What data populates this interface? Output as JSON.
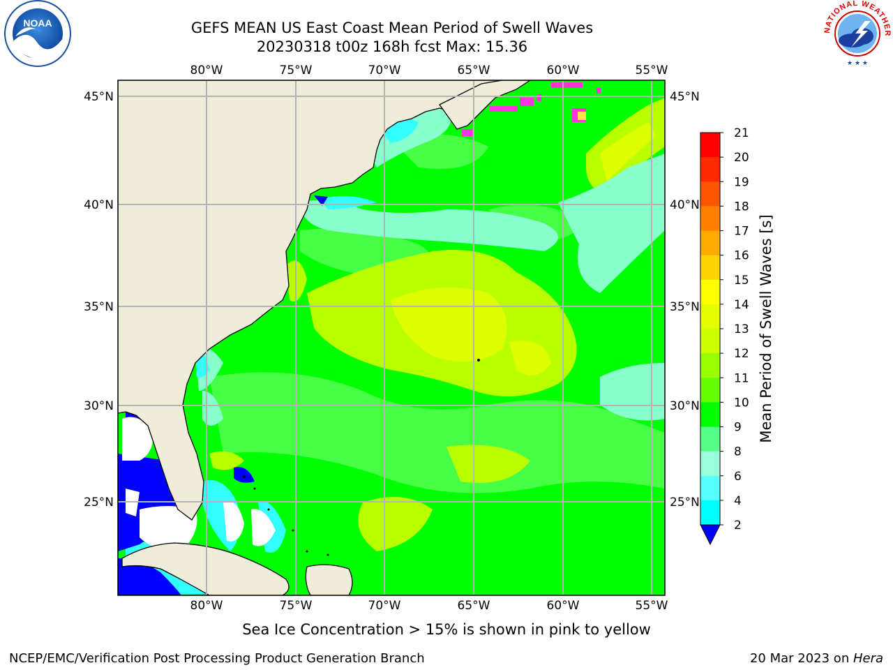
{
  "title": {
    "line1": "GEFS MEAN US East Coast Mean Period of Swell Waves",
    "line2": "20230318 t00z 168h fcst   Max: 15.36"
  },
  "map": {
    "lon_labels": [
      "80°W",
      "75°W",
      "70°W",
      "65°W",
      "60°W",
      "55°W"
    ],
    "lat_labels": [
      "45°N",
      "40°N",
      "35°N",
      "30°N",
      "25°N"
    ],
    "colors": {
      "land": "#efedda",
      "ocean_low": "#00ff00",
      "grid": "#b4b4b4",
      "ice": "#ff33dd"
    }
  },
  "colorbar": {
    "label": "Mean Period of Swell Waves [s]",
    "ticks": [
      "21",
      "20",
      "19",
      "18",
      "17",
      "16",
      "15",
      "14",
      "13",
      "12",
      "11",
      "10",
      "9",
      "8",
      "6",
      "4",
      "2"
    ],
    "colors": [
      "#ff0000",
      "#ff2a00",
      "#ff5500",
      "#ff7f00",
      "#ffaa00",
      "#ffd400",
      "#ffff00",
      "#e6ff00",
      "#ccff00",
      "#99ff00",
      "#66ff00",
      "#00ff00",
      "#55ff88",
      "#99ffdd",
      "#55ffff",
      "#00ffff",
      "#00ccff",
      "#0077ff",
      "#0000ff"
    ]
  },
  "ice_note": "Sea Ice Concentration > 15% is shown in pink to yellow",
  "footer": {
    "left": "NCEP/EMC/Verification Post Processing Product Generation Branch",
    "right_date": "20 Mar 2023 on ",
    "right_machine": "Hera"
  },
  "logos": {
    "noaa_text": "NOAA",
    "nws_text": "NATIONAL WEATHER SERVICE"
  }
}
